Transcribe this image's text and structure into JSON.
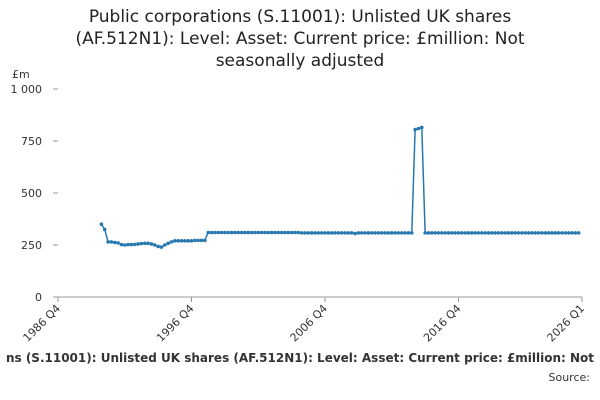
{
  "chart_data": {
    "type": "line",
    "title": [
      "Public corporations (S.11001): Unlisted UK shares",
      "(AF.512N1): Level: Asset: Current price: £million: Not",
      "seasonally adjusted"
    ],
    "y_unit": "£m",
    "footer": "ns (S.11001): Unlisted UK shares (AF.512N1): Level: Asset: Current price: £million: Not",
    "source": "Source:",
    "x": [
      "1990 Q1",
      "1990 Q2",
      "1990 Q3",
      "1990 Q4",
      "1991 Q1",
      "1991 Q2",
      "1991 Q3",
      "1991 Q4",
      "1992 Q1",
      "1992 Q2",
      "1992 Q3",
      "1992 Q4",
      "1993 Q1",
      "1993 Q2",
      "1993 Q3",
      "1993 Q4",
      "1994 Q1",
      "1994 Q2",
      "1994 Q3",
      "1994 Q4",
      "1995 Q1",
      "1995 Q2",
      "1995 Q3",
      "1995 Q4",
      "1996 Q1",
      "1996 Q2",
      "1996 Q3",
      "1996 Q4",
      "1997 Q1",
      "1997 Q2",
      "1997 Q3",
      "1997 Q4",
      "1998 Q1",
      "1998 Q2",
      "1998 Q3",
      "1998 Q4",
      "1999 Q1",
      "1999 Q2",
      "1999 Q3",
      "1999 Q4",
      "2000 Q1",
      "2000 Q2",
      "2000 Q3",
      "2000 Q4",
      "2001 Q1",
      "2001 Q2",
      "2001 Q3",
      "2001 Q4",
      "2002 Q1",
      "2002 Q2",
      "2002 Q3",
      "2002 Q4",
      "2003 Q1",
      "2003 Q2",
      "2003 Q3",
      "2003 Q4",
      "2004 Q1",
      "2004 Q2",
      "2004 Q3",
      "2004 Q4",
      "2005 Q1",
      "2005 Q2",
      "2005 Q3",
      "2005 Q4",
      "2006 Q1",
      "2006 Q2",
      "2006 Q3",
      "2006 Q4",
      "2007 Q1",
      "2007 Q2",
      "2007 Q3",
      "2007 Q4",
      "2008 Q1",
      "2008 Q2",
      "2008 Q3",
      "2008 Q4",
      "2009 Q1",
      "2009 Q2",
      "2009 Q3",
      "2009 Q4",
      "2010 Q1",
      "2010 Q2",
      "2010 Q3",
      "2010 Q4",
      "2011 Q1",
      "2011 Q2",
      "2011 Q3",
      "2011 Q4",
      "2012 Q1",
      "2012 Q2",
      "2012 Q3",
      "2012 Q4",
      "2013 Q1",
      "2013 Q2",
      "2013 Q3",
      "2013 Q4",
      "2014 Q1",
      "2014 Q2",
      "2014 Q3",
      "2014 Q4",
      "2015 Q1",
      "2015 Q2",
      "2015 Q3",
      "2015 Q4",
      "2016 Q1",
      "2016 Q2",
      "2016 Q3",
      "2016 Q4",
      "2017 Q1",
      "2017 Q2",
      "2017 Q3",
      "2017 Q4",
      "2018 Q1",
      "2018 Q2",
      "2018 Q3",
      "2018 Q4",
      "2019 Q1",
      "2019 Q2",
      "2019 Q3",
      "2019 Q4",
      "2020 Q1",
      "2020 Q2",
      "2020 Q3",
      "2020 Q4",
      "2021 Q1",
      "2021 Q2",
      "2021 Q3",
      "2021 Q4",
      "2022 Q1",
      "2022 Q2",
      "2022 Q3",
      "2022 Q4",
      "2023 Q1",
      "2023 Q2",
      "2023 Q3",
      "2023 Q4",
      "2024 Q1",
      "2024 Q2",
      "2024 Q3",
      "2024 Q4",
      "2025 Q1",
      "2025 Q2",
      "2025 Q3",
      "2025 Q4"
    ],
    "series": [
      {
        "color": "#2878b0",
        "values": [
          350,
          325,
          265,
          265,
          262,
          260,
          252,
          250,
          252,
          252,
          253,
          255,
          257,
          258,
          258,
          255,
          250,
          243,
          240,
          250,
          258,
          265,
          270,
          270,
          270,
          270,
          270,
          270,
          272,
          272,
          272,
          272,
          310,
          310,
          310,
          310,
          310,
          310,
          310,
          310,
          310,
          310,
          310,
          310,
          310,
          310,
          310,
          310,
          310,
          310,
          310,
          310,
          310,
          310,
          310,
          310,
          310,
          310,
          310,
          310,
          308,
          308,
          308,
          308,
          308,
          308,
          308,
          308,
          308,
          308,
          308,
          308,
          308,
          308,
          308,
          308,
          305,
          308,
          308,
          308,
          308,
          308,
          308,
          308,
          308,
          308,
          308,
          308,
          308,
          308,
          308,
          308,
          308,
          308,
          805,
          810,
          815,
          308,
          308,
          308,
          308,
          308,
          308,
          308,
          308,
          308,
          308,
          308,
          308,
          308,
          308,
          308,
          308,
          308,
          308,
          308,
          308,
          308,
          308,
          308,
          308,
          308,
          308,
          308,
          308,
          308,
          308,
          308,
          308,
          308,
          308,
          308,
          308,
          308,
          308,
          308,
          308,
          308,
          308,
          308,
          308,
          308,
          308,
          308
        ]
      }
    ],
    "xlim": [
      "1986 Q4",
      "2026 Q1"
    ],
    "xticks": [
      "1986 Q4",
      "1996 Q4",
      "2006 Q4",
      "2016 Q4",
      "2026 Q1"
    ],
    "ylim": [
      0,
      1000
    ],
    "yticks": [
      0,
      250,
      500,
      750,
      {
        "value": 1000,
        "label": "1 000"
      }
    ],
    "grid": false
  }
}
